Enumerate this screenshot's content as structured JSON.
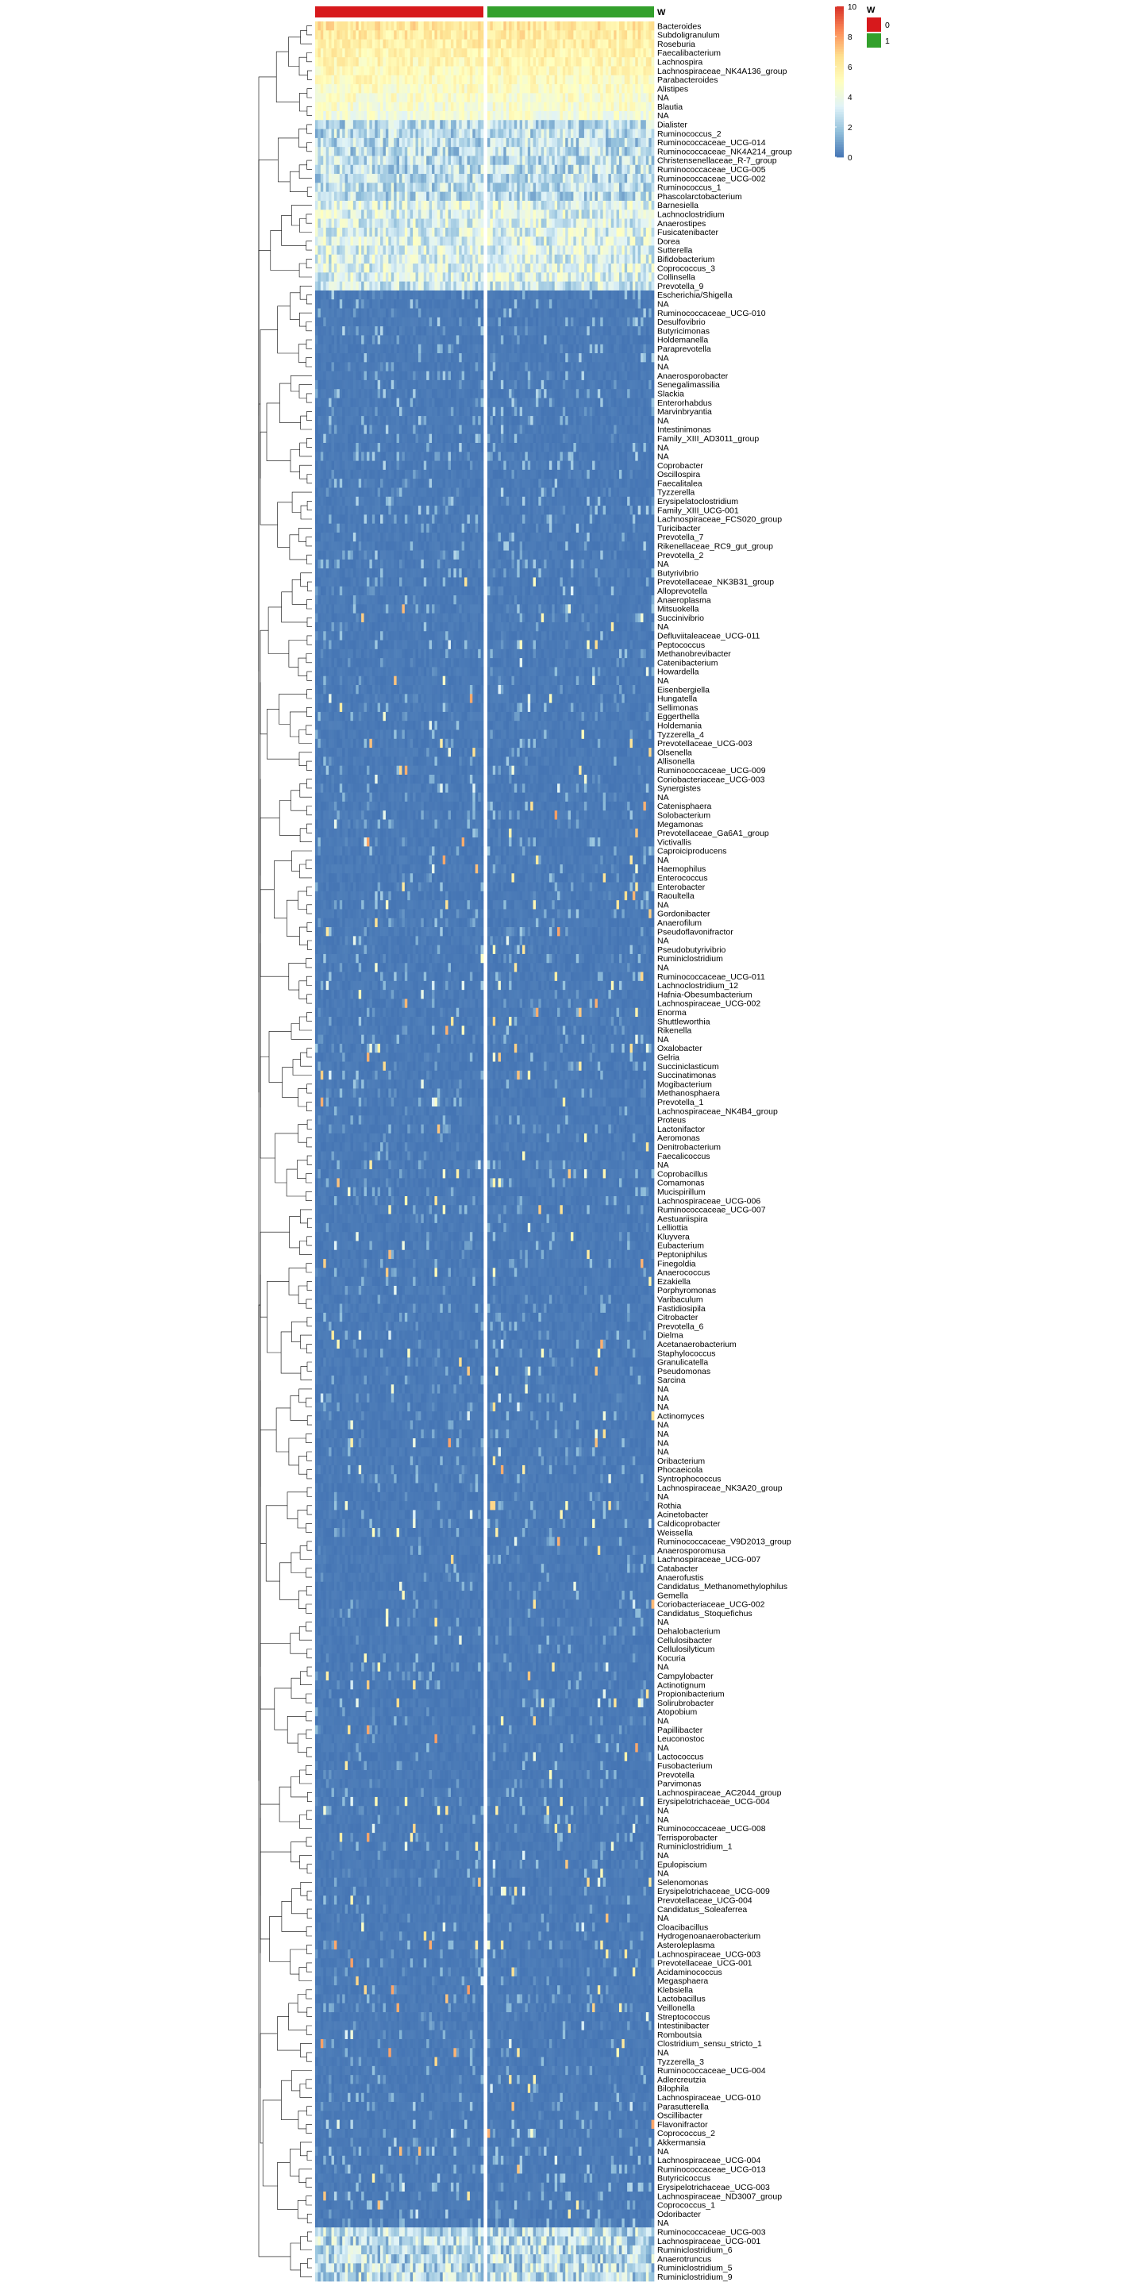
{
  "chart_data": {
    "type": "heatmap",
    "title": "",
    "legend": {
      "title": "W",
      "ticks": [
        10,
        8,
        6,
        4,
        2,
        0
      ],
      "range": [
        0,
        10
      ],
      "colors": [
        "#4575b4",
        "#91bfdb",
        "#e0f3f8",
        "#ffffbf",
        "#fee090",
        "#fc8d59",
        "#d73027"
      ],
      "categories": [
        {
          "label": "0",
          "color": "#d7191c"
        },
        {
          "label": "1",
          "color": "#33a02c"
        }
      ]
    },
    "column_annotation": {
      "name": "W",
      "groups": [
        {
          "value": "0",
          "color": "#d7191c",
          "columns": 62
        },
        {
          "value": "1",
          "color": "#33a02c",
          "columns": 62
        }
      ]
    },
    "row_labels": [
      "Bacteroides",
      "Subdoligranulum",
      "Roseburia",
      "Faecalibacterium",
      "Lachnospira",
      "Lachnospiraceae_NK4A136_group",
      "Parabacteroides",
      "Alistipes",
      "NA",
      "Blautia",
      "NA",
      "Dialister",
      "Ruminococcus_2",
      "Ruminococcaceae_UCG-014",
      "Ruminococcaceae_NK4A214_group",
      "Christensenellaceae_R-7_group",
      "Ruminococcaceae_UCG-005",
      "Ruminococcaceae_UCG-002",
      "Ruminococcus_1",
      "Phascolarctobacterium",
      "Barnesiella",
      "Lachnoclostridium",
      "Anaerostipes",
      "Fusicatenibacter",
      "Dorea",
      "Sutterella",
      "Bifidobacterium",
      "Coprococcus_3",
      "Collinsella",
      "Prevotella_9",
      "Escherichia/Shigella",
      "NA",
      "Ruminococcaceae_UCG-010",
      "Desulfovibrio",
      "Butyricimonas",
      "Holdemanella",
      "Paraprevotella",
      "NA",
      "NA",
      "Anaerosporobacter",
      "Senegalimassilia",
      "Slackia",
      "Enterorhabdus",
      "Marvinbryantia",
      "NA",
      "Intestinimonas",
      "Family_XIII_AD3011_group",
      "NA",
      "NA",
      "Coprobacter",
      "Oscillospira",
      "Faecalitalea",
      "Tyzzerella",
      "Erysipelatoclostridium",
      "Family_XIII_UCG-001",
      "Lachnospiraceae_FCS020_group",
      "Turicibacter",
      "Prevotella_7",
      "Rikenellaceae_RC9_gut_group",
      "Prevotella_2",
      "NA",
      "Butyrivibrio",
      "Prevotellaceae_NK3B31_group",
      "Alloprevotella",
      "Anaeroplasma",
      "Mitsuokella",
      "Succinivibrio",
      "NA",
      "Defluviitaleaceae_UCG-011",
      "Peptococcus",
      "Methanobrevibacter",
      "Catenibacterium",
      "Howardella",
      "NA",
      "Eisenbergiella",
      "Hungatella",
      "Sellimonas",
      "Eggerthella",
      "Holdemania",
      "Tyzzerella_4",
      "Prevotellaceae_UCG-003",
      "Olsenella",
      "Allisonella",
      "Ruminococcaceae_UCG-009",
      "Coriobacteriaceae_UCG-003",
      "Synergistes",
      "NA",
      "Catenisphaera",
      "Solobacterium",
      "Megamonas",
      "Prevotellaceae_Ga6A1_group",
      "Victivallis",
      "Caproiciproducens",
      "NA",
      "Haemophilus",
      "Enterococcus",
      "Enterobacter",
      "Raoultella",
      "NA",
      "Gordonibacter",
      "Anaerofilum",
      "Pseudoflavonifractor",
      "NA",
      "Pseudobutyrivibrio",
      "Ruminiclostridium",
      "NA",
      "Ruminococcaceae_UCG-011",
      "Lachnoclostridium_12",
      "Hafnia-Obesumbacterium",
      "Lachnospiraceae_UCG-002",
      "Enorma",
      "Shuttleworthia",
      "Rikenella",
      "NA",
      "Oxalobacter",
      "Gelria",
      "Succiniclasticum",
      "Succinatimonas",
      "Mogibacterium",
      "Methanosphaera",
      "Prevotella_1",
      "Lachnospiraceae_NK4B4_group",
      "Proteus",
      "Lactonifactor",
      "Aeromonas",
      "Denitrobacterium",
      "Faecalicoccus",
      "NA",
      "Coprobacillus",
      "Comamonas",
      "Mucispirillum",
      "Lachnospiraceae_UCG-006",
      "Ruminococcaceae_UCG-007",
      "Aestuariispira",
      "Lelliottia",
      "Kluyvera",
      "Eubacterium",
      "Peptoniphilus",
      "Finegoldia",
      "Anaerococcus",
      "Ezakiella",
      "Porphyromonas",
      "Varibaculum",
      "Fastidiosipila",
      "Citrobacter",
      "Prevotella_6",
      "Dielma",
      "Acetanaerobacterium",
      "Staphylococcus",
      "Granulicatella",
      "Pseudomonas",
      "Sarcina",
      "NA",
      "NA",
      "NA",
      "Actinomyces",
      "NA",
      "NA",
      "NA",
      "NA",
      "Oribacterium",
      "Phocaeicola",
      "Syntrophococcus",
      "Lachnospiraceae_NK3A20_group",
      "NA",
      "Rothia",
      "Acinetobacter",
      "Caldicoprobacter",
      "Weissella",
      "Ruminococcaceae_V9D2013_group",
      "Anaerosporomusa",
      "Lachnospiraceae_UCG-007",
      "Catabacter",
      "Anaerofustis",
      "Candidatus_Methanomethylophilus",
      "Gemella",
      "Coriobacteriaceae_UCG-002",
      "Candidatus_Stoquefichus",
      "NA",
      "Dehalobacterium",
      "Cellulosibacter",
      "Cellulosilyticum",
      "Kocuria",
      "NA",
      "Campylobacter",
      "Actinotignum",
      "Propionibacterium",
      "Solirubrobacter",
      "Atopobium",
      "NA",
      "Papillibacter",
      "Leuconostoc",
      "NA",
      "Lactococcus",
      "Fusobacterium",
      "Prevotella",
      "Parvimonas",
      "Lachnospiraceae_AC2044_group",
      "Erysipelotrichaceae_UCG-004",
      "NA",
      "NA",
      "Ruminococcaceae_UCG-008",
      "Terrisporobacter",
      "Ruminiclostridium_1",
      "NA",
      "Epulopiscium",
      "NA",
      "Selenomonas",
      "Erysipelotrichaceae_UCG-009",
      "Prevotellaceae_UCG-004",
      "Candidatus_Soleaferrea",
      "NA",
      "Cloacibacillus",
      "Hydrogenoanaerobacterium",
      "Asteroleplasma",
      "Lachnospiraceae_UCG-003",
      "Prevotellaceae_UCG-001",
      "Acidaminococcus",
      "Megasphaera",
      "Klebsiella",
      "Lactobacillus",
      "Veillonella",
      "Streptococcus",
      "Intestinibacter",
      "Romboutsia",
      "Clostridium_sensu_stricto_1",
      "NA",
      "Tyzzerella_3",
      "Ruminococcaceae_UCG-004",
      "Adlercreutzia",
      "Bilophila",
      "Lachnospiraceae_UCG-010",
      "Parasutterella",
      "Oscillibacter",
      "Flavonifractor",
      "Coprococcus_2",
      "Akkermansia",
      "NA",
      "Lachnospiraceae_UCG-004",
      "Ruminococcaceae_UCG-013",
      "Butyricicoccus",
      "Erysipelotrichaceae_UCG-003",
      "Lachnospiraceae_ND3007_group",
      "Coprococcus_1",
      "Odoribacter",
      "NA",
      "Ruminococcaceae_UCG-003",
      "Lachnospiraceae_UCG-001",
      "Ruminiclostridium_6",
      "Anaerotruncus",
      "Ruminiclostridium_5",
      "Ruminiclostridium_9"
    ]
  }
}
